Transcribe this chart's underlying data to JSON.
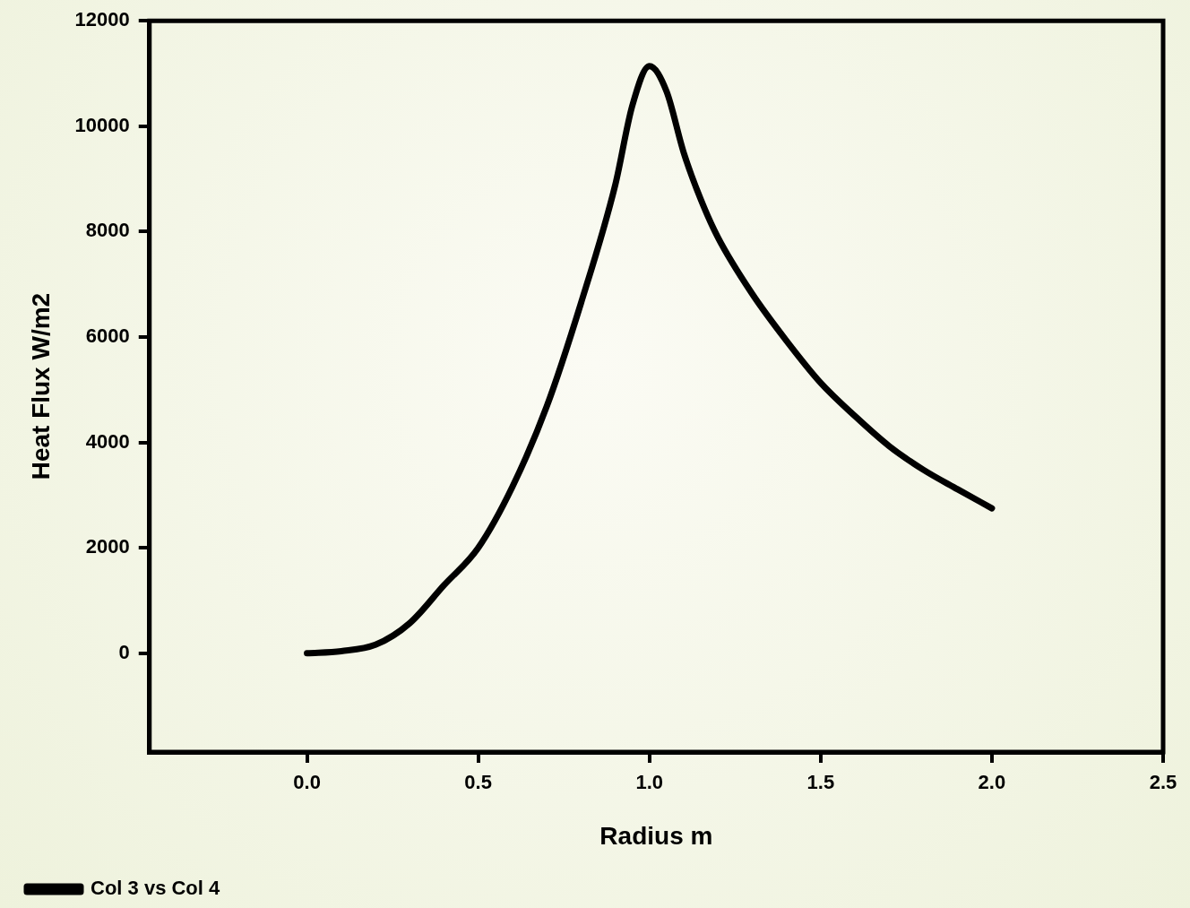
{
  "chart_data": {
    "type": "line",
    "xlabel": "Radius m",
    "ylabel": "Heat Flux W/m2",
    "xlim": [
      -0.46,
      2.5
    ],
    "xticks": [
      {
        "value": 0,
        "label": "0.0"
      },
      {
        "value": 0.5,
        "label": "0.5"
      },
      {
        "value": 1,
        "label": "1.0"
      },
      {
        "value": 1.5,
        "label": "1.5"
      },
      {
        "value": 2,
        "label": "2.0"
      },
      {
        "value": 2.5,
        "label": "2.5"
      }
    ],
    "ylim": [
      -1875,
      12000
    ],
    "yticks": [
      0,
      2000,
      4000,
      6000,
      8000,
      10000,
      12000
    ],
    "grid": false,
    "legend": "bottom left",
    "marker": "none",
    "line_style": "solid",
    "series": [
      {
        "name": "Col 3 vs Col 4",
        "color": "#000000",
        "x": [
          0,
          0.1,
          0.2,
          0.3,
          0.4,
          0.5,
          0.6,
          0.7,
          0.8,
          0.9,
          0.95,
          1.0,
          1.05,
          1.1,
          1.15,
          1.2,
          1.3,
          1.4,
          1.5,
          1.6,
          1.7,
          1.8,
          1.9,
          2.0
        ],
        "values": [
          0,
          40,
          160,
          570,
          1290,
          2000,
          3160,
          4680,
          6640,
          8880,
          10390,
          11140,
          10660,
          9500,
          8610,
          7890,
          6820,
          5930,
          5130,
          4500,
          3930,
          3480,
          3110,
          2750
        ]
      }
    ]
  }
}
